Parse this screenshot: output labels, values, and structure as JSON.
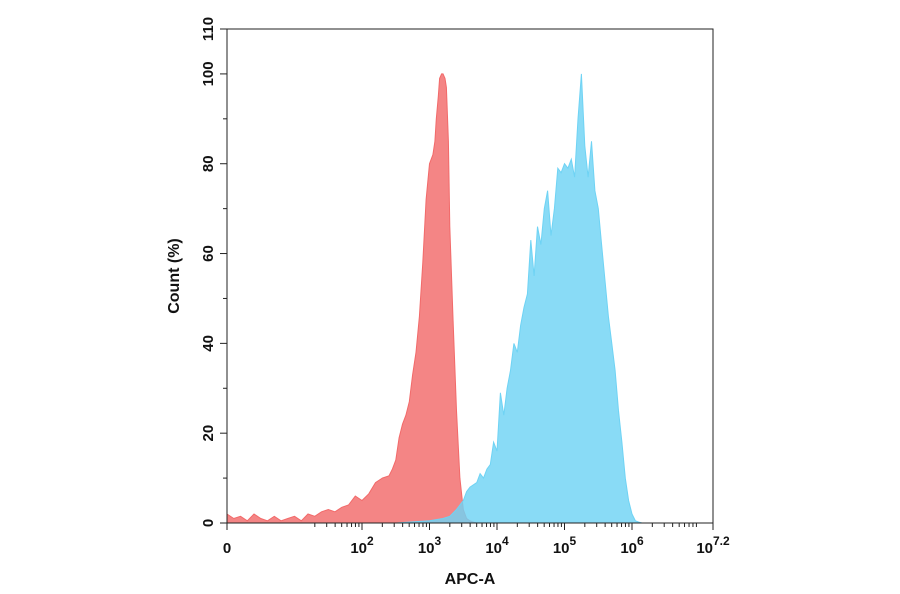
{
  "chart_data": {
    "type": "area",
    "title": "",
    "xlabel": "APC-A",
    "ylabel": "Count (%)",
    "xscale": "log",
    "xlim": [
      0,
      7.2
    ],
    "ylim": [
      0,
      110
    ],
    "grid": false,
    "legend": "none",
    "x_ticks": [
      {
        "label": "0",
        "base": "0",
        "exp": "",
        "value": 0
      },
      {
        "label": "10^2",
        "base": "10",
        "exp": "2",
        "value": 2
      },
      {
        "label": "10^3",
        "base": "10",
        "exp": "3",
        "value": 3
      },
      {
        "label": "10^4",
        "base": "10",
        "exp": "4",
        "value": 4
      },
      {
        "label": "10^5",
        "base": "10",
        "exp": "5",
        "value": 5
      },
      {
        "label": "10^6",
        "base": "10",
        "exp": "6",
        "value": 6
      },
      {
        "label": "10^7.2",
        "base": "10",
        "exp": "7.2",
        "value": 7.2
      }
    ],
    "y_ticks": [
      0,
      20,
      40,
      60,
      80,
      100,
      110
    ],
    "series": [
      {
        "color": "#f26a6a",
        "x": [
          0.0,
          0.1,
          0.2,
          0.3,
          0.4,
          0.5,
          0.6,
          0.7,
          0.8,
          0.9,
          1.0,
          1.1,
          1.2,
          1.3,
          1.4,
          1.5,
          1.6,
          1.7,
          1.8,
          1.9,
          2.0,
          2.1,
          2.2,
          2.3,
          2.4,
          2.45,
          2.5,
          2.55,
          2.6,
          2.65,
          2.7,
          2.75,
          2.8,
          2.85,
          2.9,
          2.95,
          3.0,
          3.05,
          3.08,
          3.1,
          3.13,
          3.15,
          3.18,
          3.2,
          3.23,
          3.25,
          3.28,
          3.3,
          3.35,
          3.4,
          3.45,
          3.5,
          3.55,
          3.6,
          3.65,
          3.7,
          3.8,
          3.9,
          4.0
        ],
        "y": [
          2.0,
          1.0,
          1.5,
          0.5,
          2.0,
          1.0,
          0.5,
          1.5,
          0.5,
          1.0,
          1.5,
          0.5,
          2.0,
          1.5,
          2.5,
          3.0,
          2.5,
          3.5,
          4.0,
          6.0,
          5.0,
          6.5,
          9.0,
          10.0,
          10.5,
          12.0,
          14.0,
          19.0,
          22.0,
          24.0,
          27.0,
          33.0,
          38.0,
          46.0,
          58.0,
          72.0,
          80.0,
          82.0,
          85.0,
          90.0,
          95.0,
          99.0,
          100.0,
          100.0,
          99.0,
          97.0,
          85.0,
          66.0,
          45.0,
          25.0,
          10.0,
          3.0,
          1.0,
          0.5,
          0.2,
          0.0,
          0.0,
          0.0,
          0.0
        ]
      },
      {
        "color": "#6fd3f4",
        "x": [
          2.0,
          2.5,
          3.0,
          3.2,
          3.3,
          3.4,
          3.5,
          3.55,
          3.6,
          3.7,
          3.75,
          3.8,
          3.85,
          3.9,
          3.95,
          4.0,
          4.05,
          4.1,
          4.15,
          4.2,
          4.25,
          4.3,
          4.35,
          4.4,
          4.45,
          4.5,
          4.55,
          4.6,
          4.65,
          4.7,
          4.75,
          4.8,
          4.85,
          4.9,
          4.95,
          5.0,
          5.05,
          5.1,
          5.15,
          5.2,
          5.25,
          5.3,
          5.35,
          5.4,
          5.45,
          5.5,
          5.55,
          5.6,
          5.65,
          5.7,
          5.75,
          5.8,
          5.85,
          5.9,
          5.95,
          6.0,
          6.05,
          6.1,
          6.15,
          6.2,
          6.3
        ],
        "y": [
          0.0,
          0.0,
          0.5,
          1.0,
          1.5,
          3.0,
          5.0,
          7.0,
          8.0,
          9.0,
          11.0,
          10.0,
          12.0,
          13.0,
          18.0,
          16.0,
          29.0,
          24.0,
          30.0,
          34.0,
          40.0,
          38.0,
          44.0,
          48.0,
          51.0,
          63.0,
          55.0,
          66.0,
          62.0,
          70.0,
          74.0,
          64.0,
          70.0,
          79.0,
          78.0,
          80.0,
          79.0,
          81.0,
          77.0,
          90.0,
          100.0,
          84.0,
          77.0,
          85.0,
          74.0,
          70.0,
          62.0,
          54.0,
          46.0,
          40.0,
          34.0,
          25.0,
          18.0,
          10.0,
          5.0,
          2.0,
          0.5,
          0.2,
          0.0,
          0.0,
          0.0
        ]
      }
    ]
  }
}
